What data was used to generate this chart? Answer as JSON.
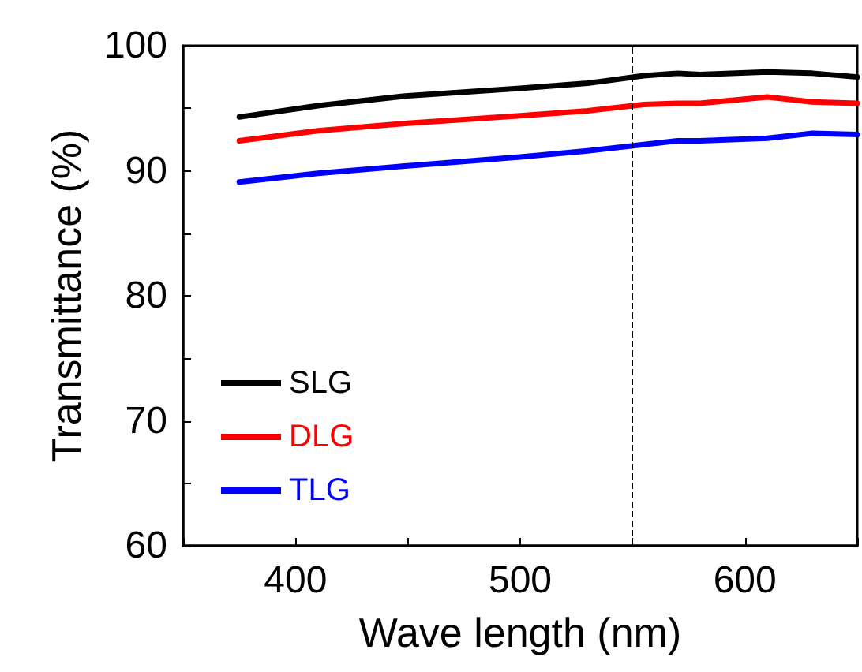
{
  "chart_data": {
    "type": "line",
    "xlabel": "Wave length (nm)",
    "ylabel": "Transmittance (%)",
    "xlim": [
      350,
      650
    ],
    "xticks": [
      {
        "value": 350,
        "label": null
      },
      400,
      {
        "value": 450,
        "label": null
      },
      500,
      {
        "value": 550,
        "label": null
      },
      600,
      {
        "value": 650,
        "label": null
      }
    ],
    "ylim": [
      60,
      100
    ],
    "yticks": [
      60,
      {
        "value": 65,
        "label": null
      },
      70,
      {
        "value": 75,
        "label": null
      },
      80,
      {
        "value": 85,
        "label": null
      },
      90,
      {
        "value": 95,
        "label": null
      },
      100
    ],
    "x": [
      375,
      410,
      450,
      500,
      530,
      555,
      570,
      580,
      610,
      630,
      650
    ],
    "series": [
      {
        "name": "SLG",
        "color": "#000000",
        "values": [
          94.3,
          95.2,
          96.0,
          96.6,
          97.0,
          97.6,
          97.8,
          97.7,
          97.9,
          97.8,
          97.5
        ]
      },
      {
        "name": "DLG",
        "color": "#ff0000",
        "values": [
          92.4,
          93.2,
          93.8,
          94.4,
          94.8,
          95.3,
          95.4,
          95.4,
          95.9,
          95.5,
          95.4
        ]
      },
      {
        "name": "TLG",
        "color": "#0000ff",
        "values": [
          89.1,
          89.8,
          90.4,
          91.1,
          91.6,
          92.1,
          92.4,
          92.4,
          92.6,
          93.0,
          92.9
        ]
      }
    ],
    "ref_lines": [
      {
        "axis": "x",
        "value": 550,
        "line_style": "dashed",
        "color": "#000000"
      }
    ],
    "legend": "bottom left",
    "grid": false,
    "marker": "none",
    "line_style": "solid"
  }
}
